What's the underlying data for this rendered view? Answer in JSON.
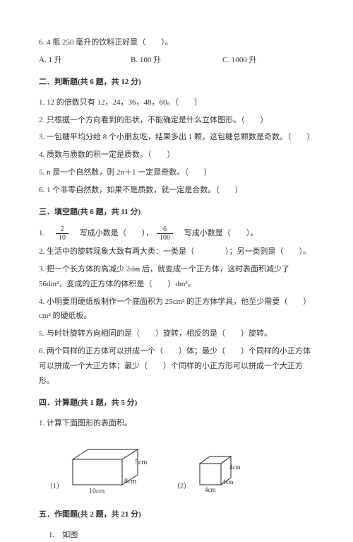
{
  "q6": {
    "text": "6. 4 瓶 250 毫升的饮料正好是（　　）。",
    "options": {
      "a": "A. 1 升",
      "b": "B. 100 升",
      "c": "C. 1000 升"
    }
  },
  "section2": {
    "title": "二．判断题(共 6 题，共 12 分)",
    "items": [
      "1. 12 的倍数只有 12，24，36，48，60。（　　）",
      "2. 只根据一个方向看到的形状，不能确定是什么立体图形。（　　）",
      "3. 一包糖平均分给 8 个小朋友吃，结果多出 1 颗，这包糖总颗数是奇数。（　　）",
      "4. 质数与质数的积一定是质数。（　　）",
      "5. n 是一个自然数，则 2n＋1 一定是奇数。（　　）",
      "6. 1 个非零自然数，如果不是质数，就一定是合数。（　　）"
    ]
  },
  "section3": {
    "title": "三．填空题(共 6 题，共 11 分)",
    "q1": {
      "prefix": "1.　",
      "frac1": {
        "num": "2",
        "den": "10"
      },
      "mid1": "　写成小数是（　　），",
      "frac2": {
        "num": "6",
        "den": "100"
      },
      "mid2": "　写成小数是（　　）。"
    },
    "items": [
      "2. 生活中的旋转现象大致有两大类：一类是（　　　　）；另一类则是（　　）。",
      "3. 把一个长方体的高减少 2dm 后，就变成一个正方体，这时表面积减少了56dm²，变成的正方体的体积是（　　）dm³。",
      "4. 小明要用硬纸板制作一个底面积为 25cm² 的正方体学具，他至少需要（　　）cm² 的硬纸板。",
      "5. 与时针旋转方向相同的是（　　）旋转，相反的是（　　）旋转。",
      "6. 两个同样的正方体可以拼成一个（　　）体；最少（　　）个同样的小正方体可以拼成一个大正方体；最少（　　）个同样的小正方形可以拼成一个大正方形。"
    ]
  },
  "section4": {
    "title": "四．计算题(共 1 题，共 5 分)",
    "q1": "1. 计算下面图形的表面积。"
  },
  "figures": {
    "label1": "（1）",
    "label2": "（2）",
    "cuboid": {
      "l": "10cm",
      "w": "8cm",
      "h": "5cm",
      "stroke": "#222222",
      "fill_top": "#ffffff",
      "fill_front": "#ffffff",
      "fill_side": "#ffffff",
      "font_size": 10
    },
    "cube": {
      "a": "4cm",
      "stroke": "#222222",
      "fill": "#ffffff",
      "font_size": 9
    }
  },
  "section5": {
    "title": "五．作图题(共 2 题，共 21 分)",
    "q1": "1.　如图"
  }
}
